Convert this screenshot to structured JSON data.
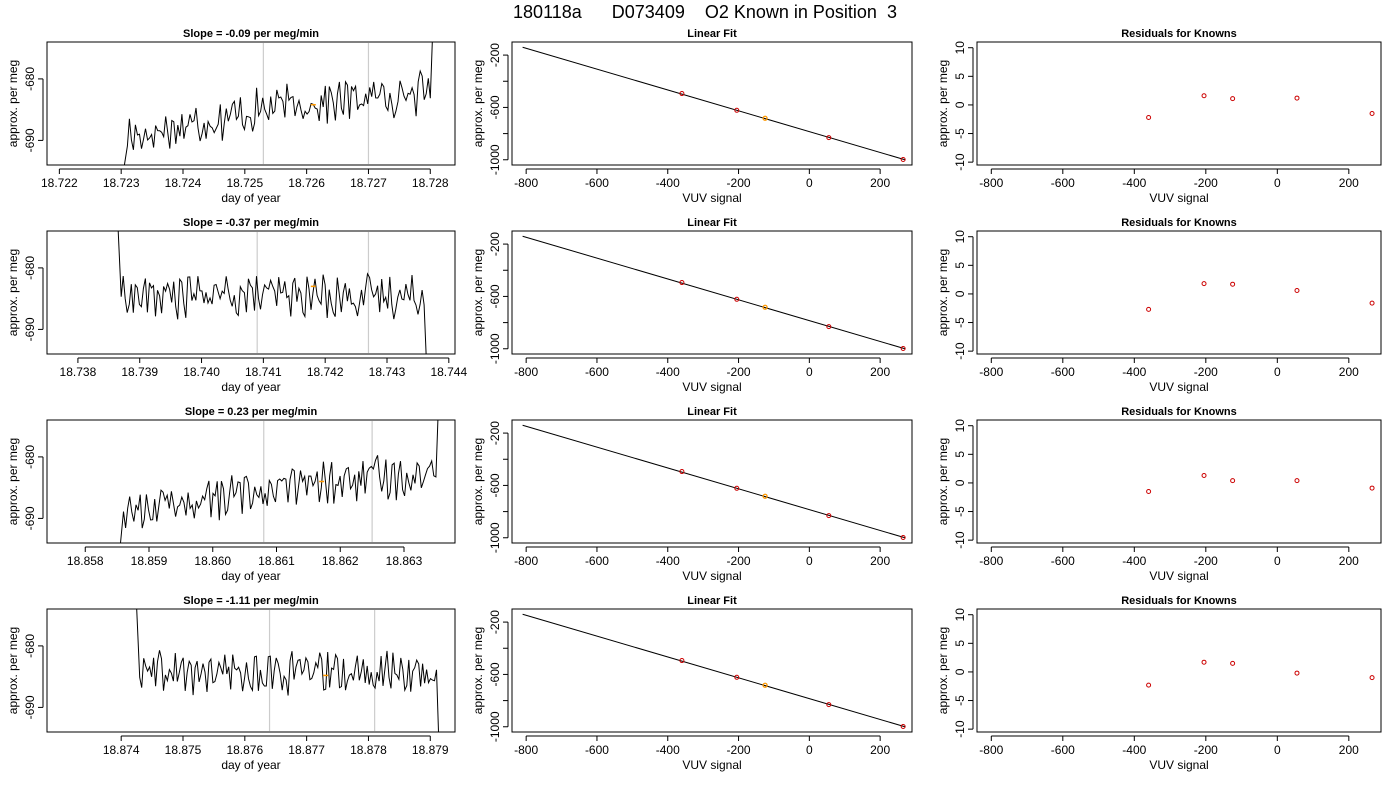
{
  "figure": {
    "title": "180118a      D073409    O2 Known in Position  3",
    "colors": {
      "line": "#000000",
      "vline": "#cccccc",
      "highlight": "#ff9900",
      "residual": "#cc0000"
    }
  },
  "chart_data": [
    {
      "row": 0,
      "slope_panel": {
        "type": "line",
        "title": "Slope =  -0.09  per meg/min",
        "xlabel": "day of year",
        "ylabel": "approx. per meg",
        "xlim": [
          18.7218,
          18.7284
        ],
        "ylim": [
          -694,
          -674
        ],
        "xticks": [
          "18.722",
          "18.723",
          "18.724",
          "18.725",
          "18.726",
          "18.727",
          "18.728"
        ],
        "yticks": [
          "-680",
          "-690"
        ],
        "vlines": [
          18.7253,
          18.727
        ],
        "trace": {
          "x_start": 18.7231,
          "x_end": 18.728,
          "level_start": -689.5,
          "level_mid": -684.5,
          "level_end": -682.0,
          "entry": -697,
          "exit": -670
        },
        "highlight": {
          "x": 18.7261,
          "y": -684.2
        }
      },
      "fit_panel": {
        "type": "scatter",
        "title": "Linear Fit",
        "xlabel": "VUV signal",
        "ylabel": "approx. per meg",
        "xlim": [
          -840,
          290
        ],
        "ylim": [
          -1040,
          -100
        ],
        "xticks": [
          "-800",
          "-600",
          "-400",
          "-200",
          "0",
          "200"
        ],
        "yticks": [
          "-200",
          "-600",
          "-1000"
        ],
        "line": [
          [
            -810,
            -140
          ],
          [
            270,
            -1000
          ]
        ],
        "points": [
          {
            "x": -360,
            "y": -494
          },
          {
            "x": -205,
            "y": -622
          },
          {
            "x": 55,
            "y": -831
          },
          {
            "x": 265,
            "y": -998
          }
        ],
        "highlight": {
          "x": -125,
          "y": -683
        }
      },
      "residual_panel": {
        "type": "scatter",
        "title": "Residuals for Knowns",
        "xlabel": "VUV signal",
        "ylabel": "approx. per meg",
        "xlim": [
          -840,
          290
        ],
        "ylim": [
          -10.5,
          11
        ],
        "xticks": [
          "-800",
          "-600",
          "-400",
          "-200",
          "0",
          "200"
        ],
        "yticks": [
          "-10",
          "-5",
          "0",
          "5",
          "10"
        ],
        "points": [
          {
            "x": -360,
            "y": -2.2
          },
          {
            "x": -205,
            "y": 1.6
          },
          {
            "x": -125,
            "y": 1.1
          },
          {
            "x": 55,
            "y": 1.2
          },
          {
            "x": 265,
            "y": -1.5
          }
        ]
      }
    },
    {
      "row": 1,
      "slope_panel": {
        "type": "line",
        "title": "Slope =  -0.37  per meg/min",
        "xlabel": "day of year",
        "ylabel": "approx. per meg",
        "xlim": [
          18.7375,
          18.7441
        ],
        "ylim": [
          -694,
          -674
        ],
        "xticks": [
          "18.738",
          "18.739",
          "18.740",
          "18.741",
          "18.742",
          "18.743",
          "18.744"
        ],
        "yticks": [
          "-680",
          "-690"
        ],
        "vlines": [
          18.7409,
          18.7427
        ],
        "trace": {
          "x_start": 18.7387,
          "x_end": 18.7436,
          "level_start": -684.5,
          "level_mid": -684.5,
          "level_end": -684.5,
          "entry": -672,
          "exit": -697
        },
        "highlight": {
          "x": 18.7418,
          "y": -683.0
        }
      },
      "fit_panel": {
        "type": "scatter",
        "title": "Linear Fit",
        "xlabel": "VUV signal",
        "ylabel": "approx. per meg",
        "xlim": [
          -840,
          290
        ],
        "ylim": [
          -1040,
          -100
        ],
        "xticks": [
          "-800",
          "-600",
          "-400",
          "-200",
          "0",
          "200"
        ],
        "yticks": [
          "-200",
          "-600",
          "-1000"
        ],
        "line": [
          [
            -810,
            -140
          ],
          [
            270,
            -1000
          ]
        ],
        "points": [
          {
            "x": -360,
            "y": -494
          },
          {
            "x": -205,
            "y": -622
          },
          {
            "x": 55,
            "y": -831
          },
          {
            "x": 265,
            "y": -998
          }
        ],
        "highlight": {
          "x": -125,
          "y": -683
        }
      },
      "residual_panel": {
        "type": "scatter",
        "title": "Residuals for Knowns",
        "xlabel": "VUV signal",
        "ylabel": "approx. per meg",
        "xlim": [
          -840,
          290
        ],
        "ylim": [
          -10.5,
          11
        ],
        "xticks": [
          "-800",
          "-600",
          "-400",
          "-200",
          "0",
          "200"
        ],
        "yticks": [
          "-10",
          "-5",
          "0",
          "5",
          "10"
        ],
        "points": [
          {
            "x": -360,
            "y": -2.7
          },
          {
            "x": -205,
            "y": 1.8
          },
          {
            "x": -125,
            "y": 1.7
          },
          {
            "x": 55,
            "y": 0.6
          },
          {
            "x": 265,
            "y": -1.6
          }
        ]
      }
    },
    {
      "row": 2,
      "slope_panel": {
        "type": "line",
        "title": "Slope =  0.23  per meg/min",
        "xlabel": "day of year",
        "ylabel": "approx. per meg",
        "xlim": [
          18.8574,
          18.8638
        ],
        "ylim": [
          -694,
          -674
        ],
        "xticks": [
          "18.858",
          "18.859",
          "18.860",
          "18.861",
          "18.862",
          "18.863"
        ],
        "yticks": [
          "-680",
          "-690"
        ],
        "vlines": [
          18.8608,
          18.8625
        ],
        "trace": {
          "x_start": 18.8586,
          "x_end": 18.8635,
          "level_start": -689.0,
          "level_mid": -685.0,
          "level_end": -682.5,
          "entry": -697,
          "exit": -670
        },
        "highlight": {
          "x": 18.8617,
          "y": -684.0
        }
      },
      "fit_panel": {
        "type": "scatter",
        "title": "Linear Fit",
        "xlabel": "VUV signal",
        "ylabel": "approx. per meg",
        "xlim": [
          -840,
          290
        ],
        "ylim": [
          -1040,
          -100
        ],
        "xticks": [
          "-800",
          "-600",
          "-400",
          "-200",
          "0",
          "200"
        ],
        "yticks": [
          "-200",
          "-600",
          "-1000"
        ],
        "line": [
          [
            -810,
            -140
          ],
          [
            270,
            -1000
          ]
        ],
        "points": [
          {
            "x": -360,
            "y": -494
          },
          {
            "x": -205,
            "y": -622
          },
          {
            "x": 55,
            "y": -831
          },
          {
            "x": 265,
            "y": -998
          }
        ],
        "highlight": {
          "x": -125,
          "y": -683
        }
      },
      "residual_panel": {
        "type": "scatter",
        "title": "Residuals for Knowns",
        "xlabel": "VUV signal",
        "ylabel": "approx. per meg",
        "xlim": [
          -840,
          290
        ],
        "ylim": [
          -10.5,
          11
        ],
        "xticks": [
          "-800",
          "-600",
          "-400",
          "-200",
          "0",
          "200"
        ],
        "yticks": [
          "-10",
          "-5",
          "0",
          "5",
          "10"
        ],
        "points": [
          {
            "x": -360,
            "y": -1.5
          },
          {
            "x": -205,
            "y": 1.3
          },
          {
            "x": -125,
            "y": 0.4
          },
          {
            "x": 55,
            "y": 0.4
          },
          {
            "x": 265,
            "y": -0.9
          }
        ]
      }
    },
    {
      "row": 3,
      "slope_panel": {
        "type": "line",
        "title": "Slope =  -1.11  per meg/min",
        "xlabel": "day of year",
        "ylabel": "approx. per meg",
        "xlim": [
          18.8728,
          18.8794
        ],
        "ylim": [
          -694,
          -674
        ],
        "xticks": [
          "18.874",
          "18.875",
          "18.876",
          "18.877",
          "18.878",
          "18.879"
        ],
        "yticks": [
          "-680",
          "-690"
        ],
        "vlines": [
          18.8764,
          18.8781
        ],
        "trace": {
          "x_start": 18.8743,
          "x_end": 18.8791,
          "level_start": -684.5,
          "level_mid": -684.5,
          "level_end": -684.5,
          "entry": -672,
          "exit": -697
        },
        "highlight": {
          "x": 18.8773,
          "y": -684.8
        }
      },
      "fit_panel": {
        "type": "scatter",
        "title": "Linear Fit",
        "xlabel": "VUV signal",
        "ylabel": "approx. per meg",
        "xlim": [
          -840,
          290
        ],
        "ylim": [
          -1040,
          -100
        ],
        "xticks": [
          "-800",
          "-600",
          "-400",
          "-200",
          "0",
          "200"
        ],
        "yticks": [
          "-200",
          "-600",
          "-1000"
        ],
        "line": [
          [
            -810,
            -140
          ],
          [
            270,
            -1000
          ]
        ],
        "points": [
          {
            "x": -360,
            "y": -494
          },
          {
            "x": -205,
            "y": -622
          },
          {
            "x": 55,
            "y": -831
          },
          {
            "x": 265,
            "y": -998
          }
        ],
        "highlight": {
          "x": -125,
          "y": -683
        }
      },
      "residual_panel": {
        "type": "scatter",
        "title": "Residuals for Knowns",
        "xlabel": "VUV signal",
        "ylabel": "approx. per meg",
        "xlim": [
          -840,
          290
        ],
        "ylim": [
          -10.5,
          11
        ],
        "xticks": [
          "-800",
          "-600",
          "-400",
          "-200",
          "0",
          "200"
        ],
        "yticks": [
          "-10",
          "-5",
          "0",
          "5",
          "10"
        ],
        "points": [
          {
            "x": -360,
            "y": -2.3
          },
          {
            "x": -205,
            "y": 1.7
          },
          {
            "x": -125,
            "y": 1.5
          },
          {
            "x": 55,
            "y": -0.2
          },
          {
            "x": 265,
            "y": -1.0
          }
        ]
      }
    }
  ]
}
